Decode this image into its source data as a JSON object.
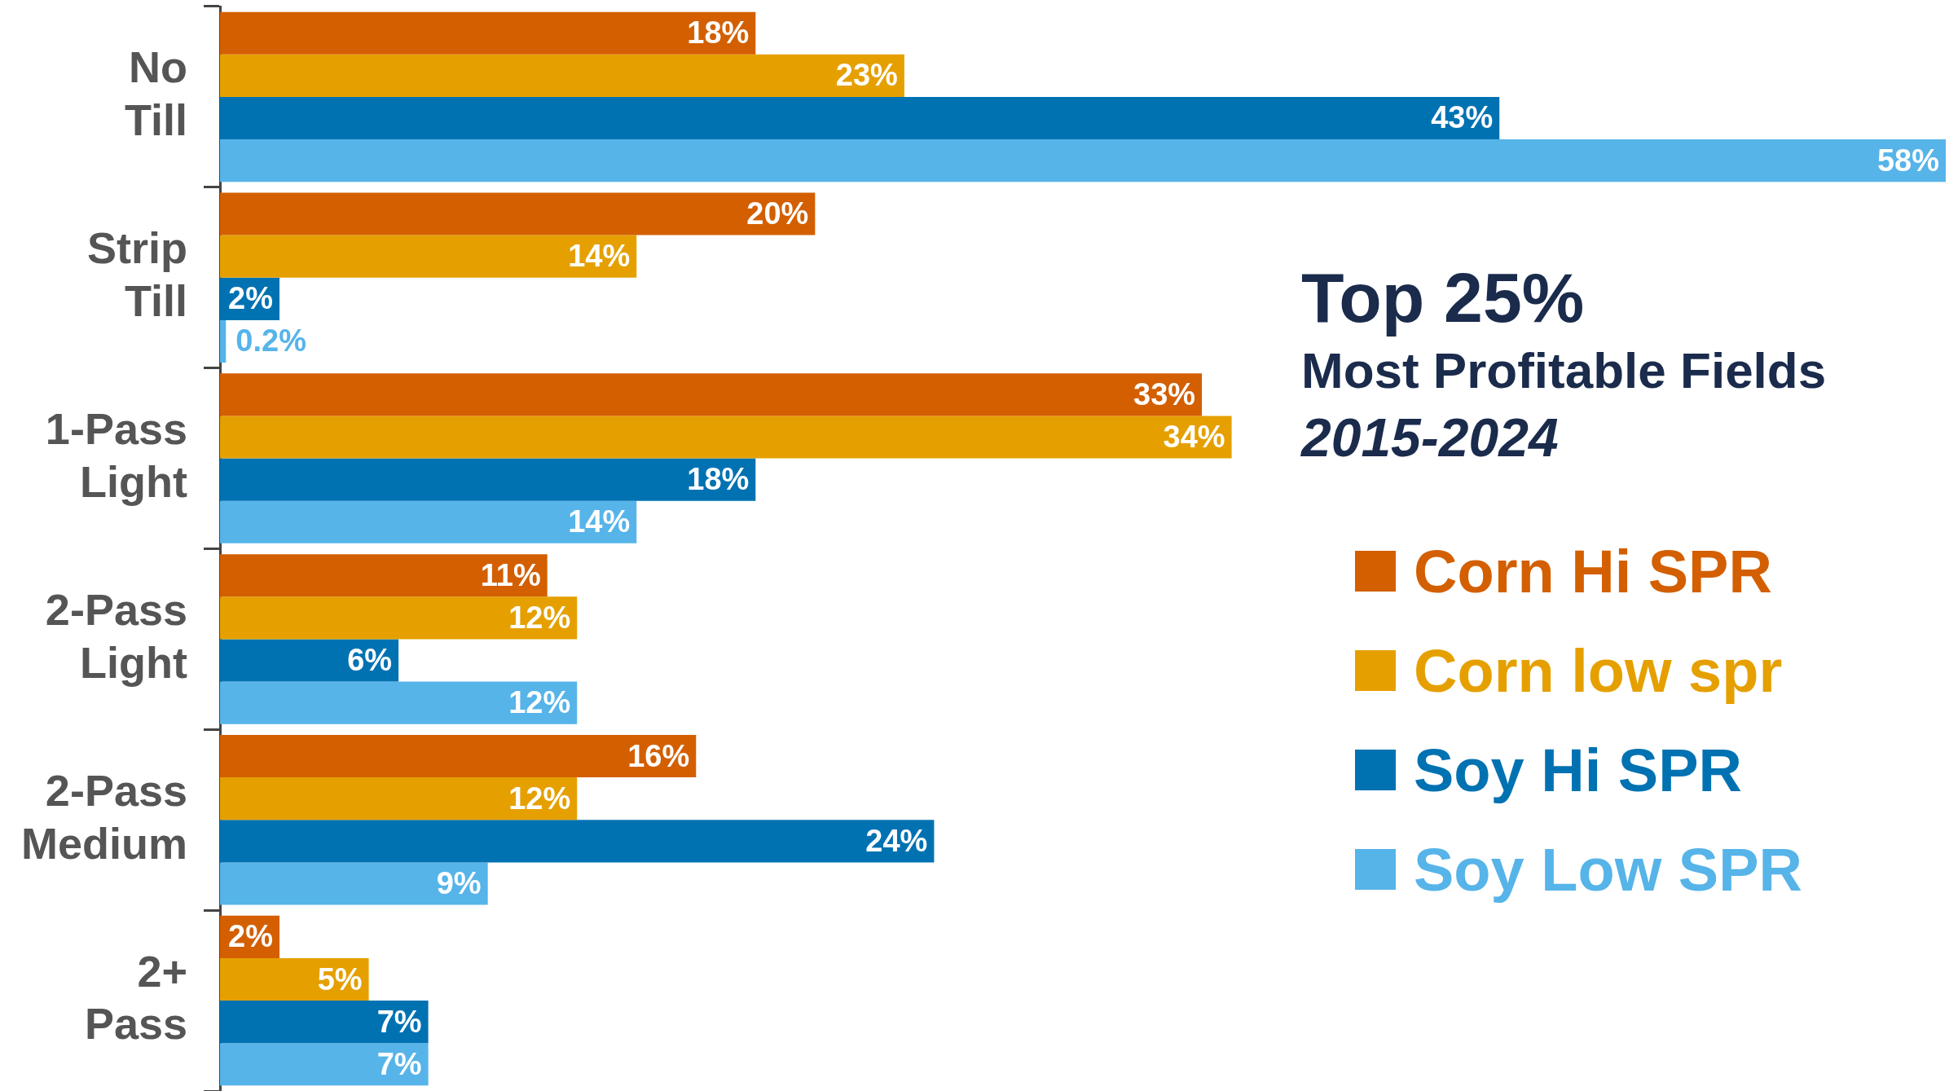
{
  "chart_data": {
    "type": "bar",
    "orientation": "horizontal",
    "title": "Top 25%",
    "subtitle": "Most Profitable Fields",
    "annotations": [
      "2015-2024"
    ],
    "categories": [
      "No Till",
      "Strip Till",
      "1-Pass Light",
      "2-Pass Light",
      "2-Pass Medium",
      "2+ Pass"
    ],
    "series": [
      {
        "name": "Corn Hi SPR",
        "color": "#d35f00",
        "values": [
          18,
          20,
          33,
          11,
          16,
          2
        ],
        "value_labels": [
          "18%",
          "20%",
          "33%",
          "11%",
          "16%",
          "2%"
        ]
      },
      {
        "name": "Corn low spr",
        "color": "#e5a000",
        "values": [
          23,
          14,
          34,
          12,
          12,
          5
        ],
        "value_labels": [
          "23%",
          "14%",
          "34%",
          "12%",
          "12%",
          "5%"
        ]
      },
      {
        "name": "Soy Hi SPR",
        "color": "#0072b2",
        "values": [
          43,
          2,
          18,
          6,
          24,
          7
        ],
        "value_labels": [
          "43%",
          "2%",
          "18%",
          "6%",
          "24%",
          "7%"
        ]
      },
      {
        "name": "Soy Low SPR",
        "color": "#56b4e9",
        "values": [
          58,
          0.2,
          14,
          12,
          9,
          7
        ],
        "value_labels": [
          "58%",
          "0.2%",
          "14%",
          "12%",
          "9%",
          "7%"
        ]
      }
    ],
    "legend": "right"
  }
}
